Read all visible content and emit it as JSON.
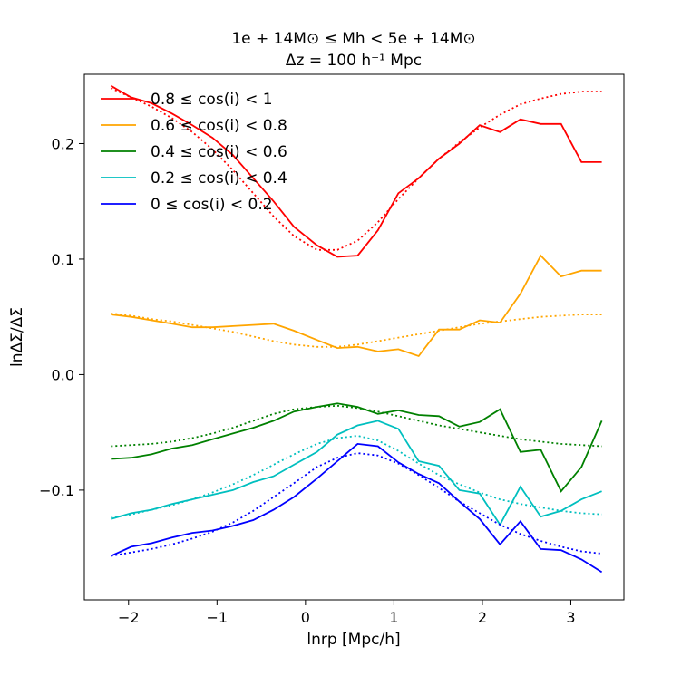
{
  "chart_data": {
    "type": "line",
    "title_line1": "1e + 14M⊙ ≤ Mh < 5e + 14M⊙",
    "title_line2": "Δz = 100 h⁻¹ Mpc",
    "xlabel": "lnrp [Mpc/h]",
    "ylabel": "lnΔΣ/ΔΣ̄",
    "xlim": [
      -2.5,
      3.6
    ],
    "ylim": [
      -0.195,
      0.26
    ],
    "xticks": [
      -2,
      -1,
      0,
      1,
      2,
      3
    ],
    "xtick_labels": [
      "−2",
      "−1",
      "0",
      "1",
      "2",
      "3"
    ],
    "yticks": [
      -0.1,
      0.0,
      0.1,
      0.2
    ],
    "ytick_labels": [
      "−0.1",
      "0.0",
      "0.1",
      "0.2"
    ],
    "legend_position": "upper-left",
    "x": [
      -2.2,
      -1.97,
      -1.74,
      -1.51,
      -1.28,
      -1.05,
      -0.82,
      -0.59,
      -0.36,
      -0.13,
      0.13,
      0.36,
      0.59,
      0.82,
      1.05,
      1.28,
      1.51,
      1.74,
      1.97,
      2.2,
      2.43,
      2.66,
      2.89,
      3.12,
      3.35
    ],
    "series": [
      {
        "name": "0.8 ≤ cos(i) < 1",
        "color": "#ff0000",
        "values": [
          0.25,
          0.24,
          0.235,
          0.226,
          0.216,
          0.205,
          0.19,
          0.17,
          0.15,
          0.128,
          0.112,
          0.102,
          0.103,
          0.125,
          0.157,
          0.17,
          0.187,
          0.2,
          0.216,
          0.21,
          0.221,
          0.217,
          0.217,
          0.184,
          0.184
        ],
        "fit": [
          0.248,
          0.24,
          0.232,
          0.222,
          0.21,
          0.195,
          0.177,
          0.157,
          0.137,
          0.12,
          0.108,
          0.108,
          0.116,
          0.132,
          0.152,
          0.17,
          0.187,
          0.201,
          0.214,
          0.225,
          0.234,
          0.239,
          0.243,
          0.245,
          0.245
        ]
      },
      {
        "name": "0.6 ≤ cos(i) < 0.8",
        "color": "#ffa500",
        "values": [
          0.052,
          0.05,
          0.047,
          0.044,
          0.041,
          0.041,
          0.042,
          0.043,
          0.044,
          0.038,
          0.03,
          0.023,
          0.024,
          0.02,
          0.022,
          0.016,
          0.039,
          0.039,
          0.047,
          0.045,
          0.07,
          0.103,
          0.085,
          0.09,
          0.09
        ],
        "fit": [
          0.053,
          0.051,
          0.048,
          0.046,
          0.043,
          0.04,
          0.037,
          0.033,
          0.029,
          0.026,
          0.024,
          0.024,
          0.026,
          0.029,
          0.032,
          0.035,
          0.038,
          0.041,
          0.044,
          0.046,
          0.048,
          0.05,
          0.051,
          0.052,
          0.052
        ]
      },
      {
        "name": "0.4 ≤ cos(i) < 0.6",
        "color": "#008000",
        "values": [
          -0.073,
          -0.072,
          -0.069,
          -0.064,
          -0.061,
          -0.056,
          -0.051,
          -0.046,
          -0.04,
          -0.032,
          -0.028,
          -0.025,
          -0.028,
          -0.034,
          -0.031,
          -0.035,
          -0.036,
          -0.045,
          -0.041,
          -0.03,
          -0.067,
          -0.065,
          -0.101,
          -0.08,
          -0.04
        ],
        "fit": [
          -0.062,
          -0.061,
          -0.06,
          -0.058,
          -0.055,
          -0.051,
          -0.046,
          -0.04,
          -0.034,
          -0.03,
          -0.028,
          -0.027,
          -0.029,
          -0.032,
          -0.036,
          -0.04,
          -0.044,
          -0.047,
          -0.05,
          -0.053,
          -0.056,
          -0.058,
          -0.06,
          -0.061,
          -0.062
        ]
      },
      {
        "name": "0.2 ≤ cos(i) < 0.4",
        "color": "#00bfbf",
        "values": [
          -0.125,
          -0.12,
          -0.117,
          -0.112,
          -0.108,
          -0.104,
          -0.1,
          -0.093,
          -0.088,
          -0.078,
          -0.067,
          -0.052,
          -0.044,
          -0.04,
          -0.047,
          -0.075,
          -0.079,
          -0.1,
          -0.103,
          -0.13,
          -0.097,
          -0.123,
          -0.118,
          -0.108,
          -0.101
        ],
        "fit": [
          -0.124,
          -0.121,
          -0.117,
          -0.113,
          -0.108,
          -0.102,
          -0.095,
          -0.087,
          -0.078,
          -0.069,
          -0.06,
          -0.055,
          -0.053,
          -0.057,
          -0.066,
          -0.077,
          -0.087,
          -0.095,
          -0.102,
          -0.108,
          -0.112,
          -0.115,
          -0.118,
          -0.12,
          -0.121
        ]
      },
      {
        "name": "0 ≤ cos(i) < 0.2",
        "color": "#0000ff",
        "values": [
          -0.157,
          -0.149,
          -0.146,
          -0.141,
          -0.137,
          -0.135,
          -0.131,
          -0.126,
          -0.117,
          -0.106,
          -0.09,
          -0.075,
          -0.06,
          -0.062,
          -0.076,
          -0.086,
          -0.094,
          -0.11,
          -0.125,
          -0.147,
          -0.127,
          -0.151,
          -0.152,
          -0.16,
          -0.171
        ],
        "fit": [
          -0.157,
          -0.154,
          -0.151,
          -0.147,
          -0.142,
          -0.136,
          -0.128,
          -0.118,
          -0.106,
          -0.094,
          -0.08,
          -0.072,
          -0.068,
          -0.07,
          -0.077,
          -0.087,
          -0.098,
          -0.11,
          -0.12,
          -0.13,
          -0.138,
          -0.144,
          -0.149,
          -0.153,
          -0.155
        ]
      }
    ]
  }
}
